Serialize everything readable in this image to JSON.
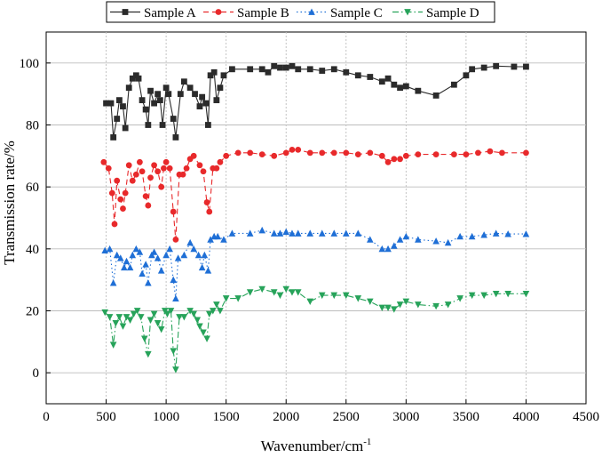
{
  "chart_data": {
    "type": "line",
    "title": "",
    "xlabel": "Wavenumber/cm",
    "xlabel_superscript": "-1",
    "ylabel": "Transmission rate/%",
    "xlim": [
      0,
      4500
    ],
    "ylim": [
      -10,
      110
    ],
    "xticks": [
      0,
      500,
      1000,
      1500,
      2000,
      2500,
      3000,
      3500,
      4000,
      4500
    ],
    "yticks": [
      0,
      20,
      40,
      60,
      80,
      100
    ],
    "grid": true,
    "legend_position": "top",
    "series": [
      {
        "name": "Sample A",
        "color": "#2b2b2b",
        "marker": "square",
        "line": "solid",
        "points": [
          [
            500,
            87
          ],
          [
            540,
            87
          ],
          [
            560,
            76
          ],
          [
            590,
            82
          ],
          [
            610,
            88
          ],
          [
            640,
            86
          ],
          [
            660,
            79
          ],
          [
            690,
            92
          ],
          [
            720,
            95
          ],
          [
            750,
            96
          ],
          [
            770,
            95
          ],
          [
            800,
            88
          ],
          [
            830,
            85
          ],
          [
            850,
            80
          ],
          [
            870,
            91
          ],
          [
            900,
            87
          ],
          [
            930,
            90
          ],
          [
            950,
            88
          ],
          [
            970,
            80
          ],
          [
            1000,
            92
          ],
          [
            1020,
            90
          ],
          [
            1060,
            82
          ],
          [
            1080,
            76
          ],
          [
            1120,
            90
          ],
          [
            1150,
            94
          ],
          [
            1200,
            92
          ],
          [
            1240,
            90
          ],
          [
            1280,
            86
          ],
          [
            1300,
            89
          ],
          [
            1330,
            87
          ],
          [
            1350,
            80
          ],
          [
            1370,
            96
          ],
          [
            1400,
            97
          ],
          [
            1420,
            88
          ],
          [
            1450,
            92
          ],
          [
            1480,
            96
          ],
          [
            1550,
            98
          ],
          [
            1700,
            98
          ],
          [
            1800,
            98
          ],
          [
            1850,
            97
          ],
          [
            1900,
            99
          ],
          [
            1950,
            98.5
          ],
          [
            2000,
            98.5
          ],
          [
            2050,
            99
          ],
          [
            2100,
            98
          ],
          [
            2200,
            98
          ],
          [
            2300,
            97.5
          ],
          [
            2400,
            98
          ],
          [
            2500,
            97
          ],
          [
            2600,
            96
          ],
          [
            2700,
            95.5
          ],
          [
            2800,
            94
          ],
          [
            2850,
            95
          ],
          [
            2900,
            93
          ],
          [
            2950,
            92
          ],
          [
            3000,
            92.5
          ],
          [
            3100,
            91
          ],
          [
            3250,
            89.5
          ],
          [
            3400,
            93
          ],
          [
            3500,
            96
          ],
          [
            3550,
            98
          ],
          [
            3650,
            98.5
          ],
          [
            3750,
            99
          ],
          [
            3900,
            98.8
          ],
          [
            4000,
            98.8
          ]
        ]
      },
      {
        "name": "Sample B",
        "color": "#e8292b",
        "marker": "circle",
        "line": "dashed",
        "points": [
          [
            480,
            68
          ],
          [
            520,
            66
          ],
          [
            550,
            58
          ],
          [
            570,
            48
          ],
          [
            590,
            62
          ],
          [
            620,
            56
          ],
          [
            640,
            53
          ],
          [
            660,
            58
          ],
          [
            690,
            67
          ],
          [
            720,
            62
          ],
          [
            750,
            64
          ],
          [
            780,
            68
          ],
          [
            800,
            65
          ],
          [
            830,
            57
          ],
          [
            850,
            54
          ],
          [
            870,
            63
          ],
          [
            900,
            67
          ],
          [
            930,
            65
          ],
          [
            960,
            60
          ],
          [
            980,
            66
          ],
          [
            1000,
            68
          ],
          [
            1030,
            66
          ],
          [
            1060,
            52
          ],
          [
            1080,
            43
          ],
          [
            1110,
            64
          ],
          [
            1140,
            64
          ],
          [
            1170,
            66
          ],
          [
            1200,
            69
          ],
          [
            1230,
            70
          ],
          [
            1280,
            67
          ],
          [
            1310,
            65
          ],
          [
            1340,
            55
          ],
          [
            1360,
            52
          ],
          [
            1390,
            66
          ],
          [
            1420,
            66
          ],
          [
            1450,
            68
          ],
          [
            1500,
            70
          ],
          [
            1600,
            71
          ],
          [
            1700,
            71
          ],
          [
            1800,
            70.5
          ],
          [
            1900,
            70
          ],
          [
            2000,
            71
          ],
          [
            2050,
            72
          ],
          [
            2100,
            72
          ],
          [
            2200,
            71
          ],
          [
            2300,
            71
          ],
          [
            2400,
            71
          ],
          [
            2500,
            71
          ],
          [
            2600,
            70.5
          ],
          [
            2700,
            71
          ],
          [
            2800,
            70
          ],
          [
            2850,
            68
          ],
          [
            2900,
            69
          ],
          [
            2950,
            69
          ],
          [
            3000,
            70
          ],
          [
            3100,
            70.5
          ],
          [
            3250,
            70.5
          ],
          [
            3400,
            70.5
          ],
          [
            3500,
            70.5
          ],
          [
            3600,
            71
          ],
          [
            3700,
            71.5
          ],
          [
            3800,
            71
          ],
          [
            4000,
            71
          ]
        ]
      },
      {
        "name": "Sample C",
        "color": "#1f6fd6",
        "marker": "triangle-up",
        "line": "dotted",
        "points": [
          [
            490,
            39.5
          ],
          [
            530,
            40
          ],
          [
            560,
            29
          ],
          [
            590,
            38
          ],
          [
            620,
            37
          ],
          [
            650,
            34
          ],
          [
            670,
            36
          ],
          [
            700,
            34
          ],
          [
            720,
            38
          ],
          [
            750,
            40
          ],
          [
            780,
            39
          ],
          [
            800,
            32
          ],
          [
            830,
            35
          ],
          [
            850,
            29
          ],
          [
            880,
            38
          ],
          [
            900,
            39
          ],
          [
            930,
            37
          ],
          [
            960,
            33
          ],
          [
            1000,
            38
          ],
          [
            1030,
            40
          ],
          [
            1060,
            30
          ],
          [
            1080,
            24
          ],
          [
            1100,
            37
          ],
          [
            1150,
            38
          ],
          [
            1200,
            42
          ],
          [
            1230,
            40
          ],
          [
            1270,
            38
          ],
          [
            1300,
            34
          ],
          [
            1320,
            38
          ],
          [
            1350,
            33
          ],
          [
            1370,
            43
          ],
          [
            1400,
            44
          ],
          [
            1430,
            44
          ],
          [
            1480,
            43
          ],
          [
            1550,
            45
          ],
          [
            1700,
            45
          ],
          [
            1800,
            46
          ],
          [
            1900,
            45
          ],
          [
            1950,
            45
          ],
          [
            2000,
            45.5
          ],
          [
            2050,
            45
          ],
          [
            2100,
            45
          ],
          [
            2200,
            45
          ],
          [
            2300,
            45
          ],
          [
            2400,
            45
          ],
          [
            2500,
            45
          ],
          [
            2600,
            45
          ],
          [
            2700,
            43
          ],
          [
            2800,
            40
          ],
          [
            2850,
            40
          ],
          [
            2900,
            41
          ],
          [
            2950,
            43
          ],
          [
            3000,
            44
          ],
          [
            3100,
            43
          ],
          [
            3250,
            42.5
          ],
          [
            3350,
            42
          ],
          [
            3450,
            44
          ],
          [
            3550,
            44
          ],
          [
            3650,
            44.5
          ],
          [
            3750,
            45
          ],
          [
            3850,
            44.8
          ],
          [
            4000,
            44.8
          ]
        ]
      },
      {
        "name": "Sample D",
        "color": "#27a35a",
        "marker": "triangle-down",
        "line": "dashdot",
        "points": [
          [
            490,
            19.5
          ],
          [
            530,
            18
          ],
          [
            560,
            9
          ],
          [
            580,
            16
          ],
          [
            610,
            18
          ],
          [
            640,
            15
          ],
          [
            670,
            18
          ],
          [
            700,
            17
          ],
          [
            730,
            19
          ],
          [
            760,
            20
          ],
          [
            790,
            18
          ],
          [
            820,
            11
          ],
          [
            850,
            6
          ],
          [
            870,
            17
          ],
          [
            900,
            19
          ],
          [
            930,
            16
          ],
          [
            960,
            14
          ],
          [
            990,
            20
          ],
          [
            1010,
            19
          ],
          [
            1040,
            20
          ],
          [
            1060,
            7
          ],
          [
            1080,
            1
          ],
          [
            1110,
            18
          ],
          [
            1150,
            18
          ],
          [
            1200,
            20
          ],
          [
            1230,
            19
          ],
          [
            1260,
            17
          ],
          [
            1280,
            15
          ],
          [
            1310,
            13
          ],
          [
            1340,
            11
          ],
          [
            1360,
            19
          ],
          [
            1390,
            20
          ],
          [
            1420,
            22
          ],
          [
            1450,
            20
          ],
          [
            1500,
            24
          ],
          [
            1600,
            24
          ],
          [
            1700,
            26
          ],
          [
            1800,
            27
          ],
          [
            1900,
            26
          ],
          [
            1950,
            25
          ],
          [
            2000,
            27
          ],
          [
            2050,
            26
          ],
          [
            2100,
            26
          ],
          [
            2200,
            23
          ],
          [
            2300,
            25
          ],
          [
            2400,
            25
          ],
          [
            2500,
            25
          ],
          [
            2600,
            24
          ],
          [
            2700,
            23
          ],
          [
            2800,
            21
          ],
          [
            2850,
            21
          ],
          [
            2900,
            20.5
          ],
          [
            2950,
            22
          ],
          [
            3000,
            23
          ],
          [
            3100,
            22
          ],
          [
            3250,
            21.5
          ],
          [
            3350,
            22
          ],
          [
            3450,
            24
          ],
          [
            3550,
            25
          ],
          [
            3650,
            25
          ],
          [
            3750,
            25.5
          ],
          [
            3850,
            25.5
          ],
          [
            4000,
            25.5
          ]
        ]
      }
    ]
  }
}
